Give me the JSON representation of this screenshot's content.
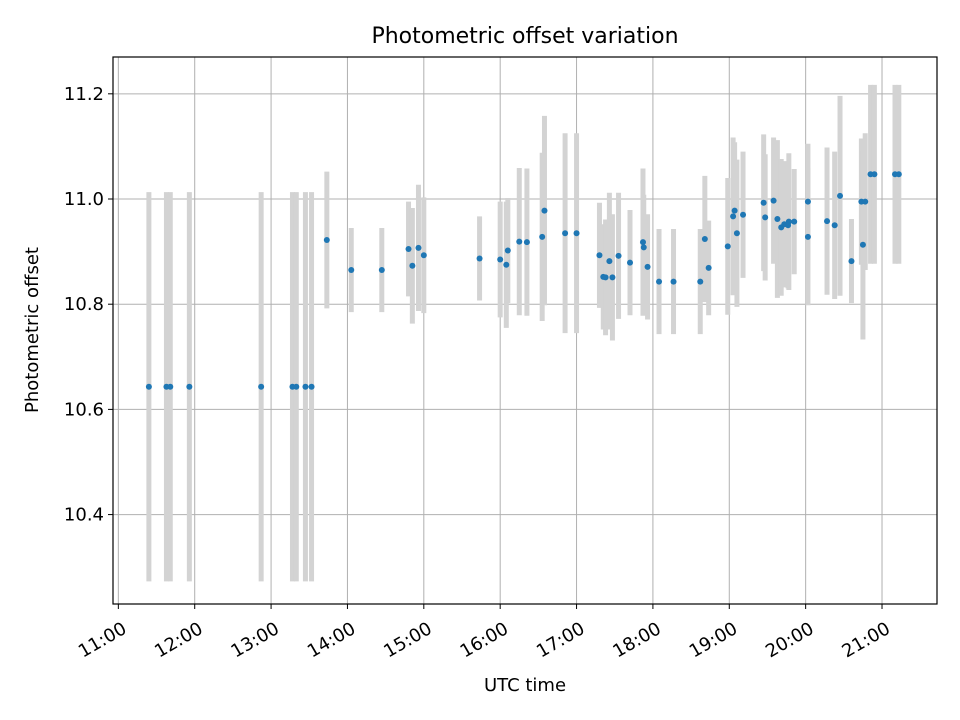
{
  "chart_data": {
    "type": "scatter",
    "title": "Photometric offset variation",
    "xlabel": "UTC time",
    "ylabel": "Photometric offset",
    "xlim_hours": [
      10.93,
      21.72
    ],
    "ylim": [
      10.23,
      11.27
    ],
    "grid": true,
    "x_ticks": [
      {
        "value": 11,
        "label": "11:00"
      },
      {
        "value": 12,
        "label": "12:00"
      },
      {
        "value": 13,
        "label": "13:00"
      },
      {
        "value": 14,
        "label": "14:00"
      },
      {
        "value": 15,
        "label": "15:00"
      },
      {
        "value": 16,
        "label": "16:00"
      },
      {
        "value": 17,
        "label": "17:00"
      },
      {
        "value": 18,
        "label": "18:00"
      },
      {
        "value": 19,
        "label": "19:00"
      },
      {
        "value": 20,
        "label": "20:00"
      },
      {
        "value": 21,
        "label": "21:00"
      }
    ],
    "y_ticks": [
      {
        "value": 10.4,
        "label": "10.4"
      },
      {
        "value": 10.6,
        "label": "10.6"
      },
      {
        "value": 10.8,
        "label": "10.8"
      },
      {
        "value": 11.0,
        "label": "11.0"
      },
      {
        "value": 11.2,
        "label": "11.2"
      }
    ],
    "colors": {
      "point": "#1f77b4",
      "errorbar": "#d3d3d3",
      "grid": "#b0b0b0",
      "axes": "#000000"
    },
    "series": [
      {
        "name": "offset",
        "x_hours": [
          11.4,
          11.63,
          11.68,
          11.93,
          12.87,
          13.28,
          13.33,
          13.45,
          13.53,
          13.73,
          14.05,
          14.45,
          14.8,
          14.85,
          14.93,
          15.0,
          15.73,
          16.0,
          16.08,
          16.1,
          16.25,
          16.35,
          16.55,
          16.58,
          16.85,
          17.0,
          17.3,
          17.35,
          17.38,
          17.43,
          17.47,
          17.55,
          17.7,
          17.87,
          17.88,
          17.93,
          18.08,
          18.27,
          18.62,
          18.68,
          18.73,
          18.98,
          19.05,
          19.07,
          19.1,
          19.18,
          19.45,
          19.47,
          19.58,
          19.63,
          19.68,
          19.72,
          19.77,
          19.78,
          19.85,
          20.03,
          20.03,
          20.28,
          20.38,
          20.45,
          20.6,
          20.73,
          20.75,
          20.78,
          20.85,
          20.9,
          21.17,
          21.22
        ],
        "y": [
          10.643,
          10.643,
          10.643,
          10.643,
          10.643,
          10.643,
          10.643,
          10.643,
          10.643,
          10.922,
          10.865,
          10.865,
          10.905,
          10.873,
          10.907,
          10.893,
          10.887,
          10.885,
          10.875,
          10.902,
          10.919,
          10.918,
          10.928,
          10.978,
          10.935,
          10.935,
          10.893,
          10.852,
          10.851,
          10.882,
          10.851,
          10.892,
          10.879,
          10.918,
          10.908,
          10.871,
          10.843,
          10.843,
          10.843,
          10.924,
          10.869,
          10.91,
          10.967,
          10.978,
          10.935,
          10.97,
          10.993,
          10.965,
          10.997,
          10.962,
          10.946,
          10.952,
          10.95,
          10.957,
          10.957,
          10.995,
          10.928,
          10.958,
          10.95,
          11.006,
          10.882,
          10.995,
          10.913,
          10.995,
          11.047,
          11.047,
          11.047,
          11.047
        ],
        "err": [
          0.37,
          0.37,
          0.37,
          0.37,
          0.37,
          0.37,
          0.37,
          0.37,
          0.37,
          0.13,
          0.08,
          0.08,
          0.09,
          0.11,
          0.12,
          0.11,
          0.08,
          0.11,
          0.12,
          0.1,
          0.14,
          0.14,
          0.16,
          0.18,
          0.19,
          0.19,
          0.1,
          0.1,
          0.11,
          0.13,
          0.12,
          0.12,
          0.1,
          0.14,
          0.1,
          0.1,
          0.1,
          0.1,
          0.1,
          0.12,
          0.09,
          0.13,
          0.15,
          0.13,
          0.14,
          0.12,
          0.13,
          0.12,
          0.12,
          0.15,
          0.13,
          0.12,
          0.12,
          0.13,
          0.1,
          0.11,
          0.13,
          0.14,
          0.14,
          0.19,
          0.08,
          0.12,
          0.18,
          0.13,
          0.17,
          0.17,
          0.17,
          0.17
        ]
      }
    ]
  }
}
